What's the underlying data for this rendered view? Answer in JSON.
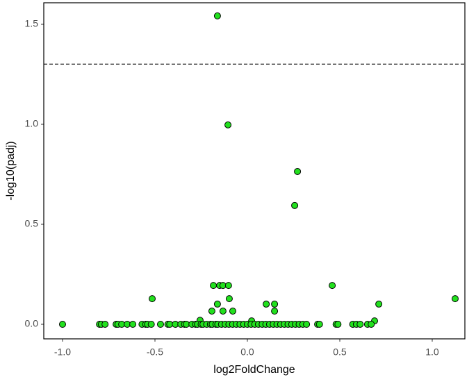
{
  "chart_data": {
    "type": "scatter",
    "xlabel": "log2FoldChange",
    "ylabel": "-log10(padj)",
    "x": [
      -1.0,
      -0.162,
      -0.105,
      0.271,
      0.256,
      0.459,
      1.124,
      0.711,
      -0.515,
      -0.184,
      -0.15,
      -0.132,
      -0.102,
      -0.098,
      -0.162,
      -0.192,
      -0.132,
      -0.079,
      0.102,
      0.147,
      0.147,
      -0.256,
      0.023,
      0.688,
      -0.8,
      -0.79,
      -0.77,
      -0.71,
      -0.7,
      -0.68,
      -0.65,
      -0.62,
      -0.57,
      -0.55,
      -0.54,
      -0.52,
      -0.47,
      -0.43,
      -0.42,
      -0.39,
      -0.36,
      -0.34,
      -0.33,
      -0.3,
      -0.28,
      -0.27,
      -0.25,
      -0.24,
      -0.22,
      -0.2,
      -0.19,
      -0.17,
      -0.16,
      -0.14,
      -0.12,
      -0.1,
      -0.08,
      -0.06,
      -0.04,
      -0.02,
      0.0,
      0.02,
      0.04,
      0.06,
      0.08,
      0.1,
      0.12,
      0.14,
      0.16,
      0.18,
      0.2,
      0.22,
      0.24,
      0.26,
      0.28,
      0.3,
      0.32,
      0.38,
      0.39,
      0.48,
      0.49,
      0.57,
      0.59,
      0.61,
      0.65,
      0.67
    ],
    "values": [
      0,
      1.542,
      0.997,
      0.764,
      0.594,
      0.194,
      0.128,
      0.101,
      0.128,
      0.194,
      0.194,
      0.194,
      0.194,
      0.128,
      0.101,
      0.066,
      0.066,
      0.066,
      0.101,
      0.101,
      0.066,
      0.02,
      0.017,
      0.017,
      0,
      0,
      0,
      0,
      0,
      0,
      0,
      0,
      0,
      0,
      0,
      0,
      0,
      0,
      0,
      0,
      0,
      0,
      0,
      0,
      0,
      0,
      0,
      0,
      0,
      0,
      0,
      0,
      0,
      0,
      0,
      0,
      0,
      0,
      0,
      0,
      0,
      0,
      0,
      0,
      0,
      0,
      0,
      0,
      0,
      0,
      0,
      0,
      0,
      0,
      0,
      0,
      0,
      0,
      0,
      0,
      0,
      0,
      0,
      0,
      0,
      0
    ],
    "color": "#22e01e",
    "xlim": [
      -1.1015,
      1.1767
    ],
    "ylim": [
      -0.0729,
      1.6076
    ],
    "xticks": [
      {
        "value": -1.0,
        "label": "-1.0"
      },
      -0.5,
      {
        "value": 0,
        "label": "0.0"
      },
      0.5,
      {
        "value": 1.0,
        "label": "1.0"
      }
    ],
    "yticks": [
      {
        "value": 0,
        "label": "0.0"
      },
      0.5,
      {
        "value": 1.0,
        "label": "1.0"
      },
      1.5
    ],
    "hline": 1.301
  }
}
